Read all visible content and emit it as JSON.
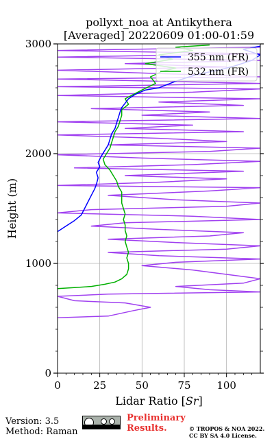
{
  "chart_data": {
    "type": "line",
    "title": [
      "pollyxt_noa at Antikythera",
      "[Averaged] 20220609 01:00-01:59"
    ],
    "xlabel": "Lidar Ratio [",
    "xlabel_italic": "Sr",
    "xlabel_suffix": "]",
    "ylabel": "Height (m)",
    "xlim": [
      0,
      120
    ],
    "ylim": [
      0,
      3000
    ],
    "xticks": [
      0,
      25,
      50,
      75,
      100
    ],
    "yticks": [
      0,
      1000,
      2000,
      3000
    ],
    "grid": true,
    "legend_position": "top-right",
    "series": [
      {
        "name": "355 nm (FR)",
        "color": "#0000ff",
        "points": [
          [
            0,
            1290
          ],
          [
            5,
            1340
          ],
          [
            10,
            1390
          ],
          [
            14,
            1440
          ],
          [
            16,
            1500
          ],
          [
            18,
            1560
          ],
          [
            20,
            1620
          ],
          [
            22,
            1680
          ],
          [
            23,
            1720
          ],
          [
            24,
            1780
          ],
          [
            23,
            1830
          ],
          [
            25,
            1880
          ],
          [
            24,
            1920
          ],
          [
            26,
            1980
          ],
          [
            28,
            2030
          ],
          [
            30,
            2080
          ],
          [
            31,
            2130
          ],
          [
            32,
            2180
          ],
          [
            34,
            2230
          ],
          [
            35,
            2280
          ],
          [
            36,
            2330
          ],
          [
            37,
            2380
          ],
          [
            38,
            2420
          ],
          [
            40,
            2460
          ],
          [
            42,
            2500
          ],
          [
            46,
            2540
          ],
          [
            52,
            2580
          ],
          [
            60,
            2600
          ],
          [
            65,
            2630
          ],
          [
            70,
            2660
          ],
          [
            78,
            2700
          ],
          [
            85,
            2730
          ],
          [
            95,
            2760
          ],
          [
            105,
            2800
          ],
          [
            115,
            2850
          ],
          [
            120,
            2900
          ],
          [
            110,
            2950
          ],
          [
            120,
            2980
          ]
        ]
      },
      {
        "name": "532 nm (FR)",
        "color": "#00b000",
        "points": [
          [
            0,
            770
          ],
          [
            10,
            780
          ],
          [
            20,
            790
          ],
          [
            28,
            810
          ],
          [
            34,
            830
          ],
          [
            38,
            860
          ],
          [
            41,
            900
          ],
          [
            42,
            950
          ],
          [
            42,
            1000
          ],
          [
            41,
            1050
          ],
          [
            42,
            1100
          ],
          [
            41,
            1150
          ],
          [
            40,
            1200
          ],
          [
            41,
            1250
          ],
          [
            40,
            1300
          ],
          [
            40,
            1350
          ],
          [
            39,
            1400
          ],
          [
            40,
            1450
          ],
          [
            39,
            1500
          ],
          [
            38,
            1550
          ],
          [
            38,
            1600
          ],
          [
            38,
            1650
          ],
          [
            36,
            1700
          ],
          [
            35,
            1750
          ],
          [
            33,
            1800
          ],
          [
            31,
            1850
          ],
          [
            28,
            1900
          ],
          [
            27,
            1950
          ],
          [
            29,
            2000
          ],
          [
            31,
            2050
          ],
          [
            32,
            2100
          ],
          [
            33,
            2150
          ],
          [
            34,
            2200
          ],
          [
            36,
            2250
          ],
          [
            37,
            2300
          ],
          [
            38,
            2350
          ],
          [
            38,
            2400
          ],
          [
            42,
            2450
          ],
          [
            40,
            2500
          ],
          [
            45,
            2540
          ],
          [
            50,
            2580
          ],
          [
            58,
            2640
          ],
          [
            55,
            2700
          ],
          [
            62,
            2750
          ],
          [
            70,
            2780
          ],
          [
            52,
            2820
          ],
          [
            68,
            2860
          ],
          [
            60,
            2900
          ],
          [
            80,
            2940
          ],
          [
            70,
            2970
          ],
          [
            90,
            2990
          ]
        ]
      },
      {
        "name": "",
        "color": "#a040f0",
        "points": [
          [
            0,
            505
          ],
          [
            30,
            520
          ],
          [
            45,
            570
          ],
          [
            55,
            600
          ],
          [
            40,
            640
          ],
          [
            10,
            660
          ],
          [
            0,
            700
          ],
          [
            30,
            720
          ],
          [
            120,
            740
          ],
          [
            90,
            760
          ],
          [
            70,
            790
          ],
          [
            110,
            820
          ],
          [
            120,
            860
          ],
          [
            100,
            900
          ],
          [
            80,
            940
          ],
          [
            50,
            980
          ],
          [
            70,
            1010
          ],
          [
            120,
            1040
          ],
          [
            60,
            1070
          ],
          [
            30,
            1100
          ],
          [
            100,
            1130
          ],
          [
            120,
            1160
          ],
          [
            70,
            1190
          ],
          [
            30,
            1220
          ],
          [
            90,
            1250
          ],
          [
            110,
            1280
          ],
          [
            60,
            1310
          ],
          [
            20,
            1340
          ],
          [
            40,
            1370
          ],
          [
            120,
            1400
          ],
          [
            80,
            1430
          ],
          [
            0,
            1460
          ],
          [
            20,
            1490
          ],
          [
            100,
            1520
          ],
          [
            120,
            1550
          ],
          [
            70,
            1580
          ],
          [
            30,
            1620
          ],
          [
            90,
            1660
          ],
          [
            120,
            1690
          ],
          [
            0,
            1710
          ],
          [
            60,
            1740
          ],
          [
            100,
            1770
          ],
          [
            40,
            1800
          ],
          [
            110,
            1840
          ],
          [
            10,
            1870
          ],
          [
            80,
            1900
          ],
          [
            120,
            1930
          ],
          [
            50,
            1960
          ],
          [
            0,
            1990
          ],
          [
            90,
            2020
          ],
          [
            120,
            2050
          ],
          [
            30,
            2080
          ],
          [
            100,
            2110
          ],
          [
            60,
            2140
          ],
          [
            0,
            2170
          ],
          [
            110,
            2200
          ],
          [
            40,
            2230
          ],
          [
            80,
            2260
          ],
          [
            0,
            2290
          ],
          [
            120,
            2320
          ],
          [
            50,
            2350
          ],
          [
            90,
            2380
          ],
          [
            20,
            2410
          ],
          [
            110,
            2440
          ],
          [
            60,
            2470
          ],
          [
            120,
            2500
          ],
          [
            0,
            2530
          ],
          [
            80,
            2560
          ],
          [
            120,
            2590
          ],
          [
            0,
            2610
          ],
          [
            120,
            2640
          ],
          [
            0,
            2680
          ],
          [
            120,
            2700
          ],
          [
            60,
            2730
          ],
          [
            0,
            2760
          ],
          [
            100,
            2790
          ],
          [
            40,
            2820
          ],
          [
            120,
            2850
          ],
          [
            0,
            2880
          ],
          [
            120,
            2910
          ],
          [
            0,
            2940
          ],
          [
            120,
            2970
          ]
        ]
      }
    ]
  },
  "footer": {
    "version": "Version: 3.5",
    "method": "Method: Raman",
    "preliminary_1": "Preliminary",
    "preliminary_2": "Results.",
    "copyright_1": "© TROPOS & NOA 2022.",
    "copyright_2": "CC BY SA 4.0 License.",
    "cc_badge_icon": "cc-by-sa-badge-icon"
  }
}
